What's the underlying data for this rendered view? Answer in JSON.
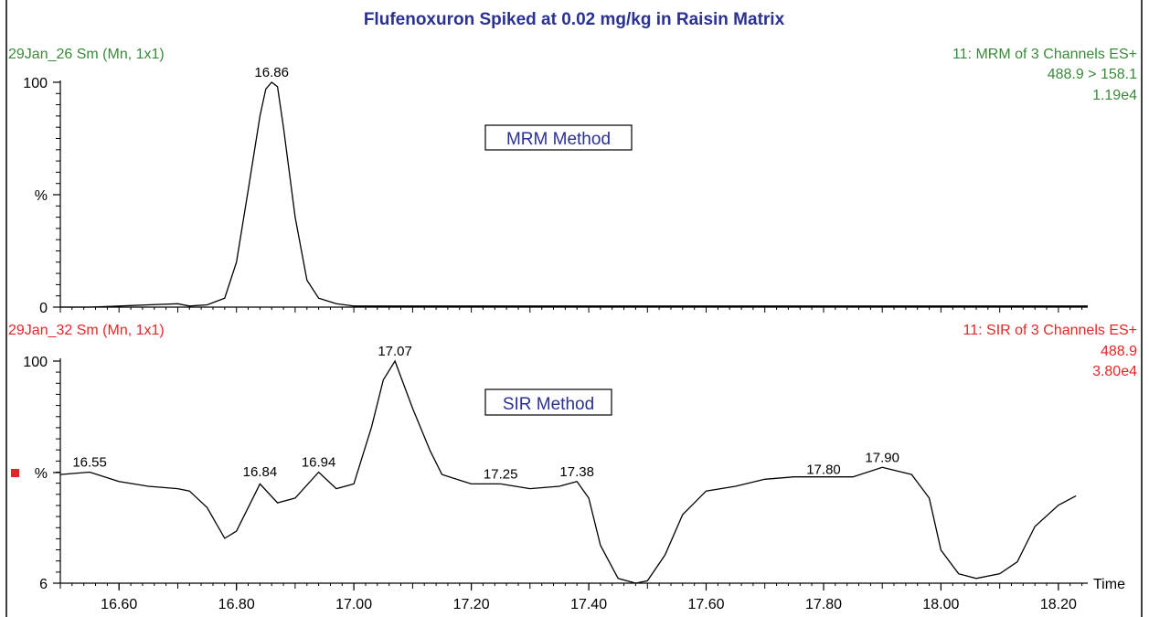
{
  "title": "Flufenoxuron Spiked at 0.02 mg/kg in Raisin Matrix",
  "colors": {
    "title": "#2a3190",
    "top_header": "#3a8a3a",
    "bottom_header": "#e02828",
    "trace": "#000000",
    "marker": "#e02828"
  },
  "chart_data": [
    {
      "type": "line",
      "method_label": "MRM Method",
      "header_left": "29Jan_26 Sm (Mn, 1x1)",
      "header_right": [
        "11: MRM of 3 Channels ES+",
        "488.9 > 158.1",
        "1.19e4"
      ],
      "y_tick_labels": [
        "100",
        "%",
        "0"
      ],
      "xlim": [
        16.5,
        18.25
      ],
      "ylim": [
        0,
        100
      ],
      "peak_labels": [
        {
          "x": 16.86,
          "y": 100,
          "text": "16.86"
        }
      ],
      "x": [
        16.5,
        16.55,
        16.6,
        16.65,
        16.7,
        16.72,
        16.75,
        16.78,
        16.8,
        16.82,
        16.84,
        16.85,
        16.86,
        16.87,
        16.88,
        16.9,
        16.92,
        16.94,
        16.97,
        17.0,
        17.2,
        17.4,
        17.6,
        17.8,
        18.0,
        18.1,
        18.2,
        18.25
      ],
      "y": [
        0,
        0,
        0.5,
        1,
        1.5,
        0.5,
        1,
        4,
        20,
        52,
        85,
        97,
        100,
        98,
        80,
        40,
        12,
        4,
        1.5,
        0.5,
        0.5,
        0.5,
        0.5,
        0.5,
        0.5,
        0.5,
        0.5,
        0.5
      ]
    },
    {
      "type": "line",
      "method_label": "SIR Method",
      "header_left": "29Jan_32 Sm (Mn, 1x1)",
      "header_right": [
        "11: SIR of 3 Channels ES+",
        "488.9",
        "3.80e4"
      ],
      "y_tick_labels": [
        "100",
        "%",
        "6"
      ],
      "xlim": [
        16.5,
        18.25
      ],
      "ylim": [
        6,
        100
      ],
      "x_ticks": [
        "16.60",
        "16.80",
        "17.00",
        "17.20",
        "17.40",
        "17.60",
        "17.80",
        "18.00",
        "18.20"
      ],
      "x_tick_values": [
        16.6,
        16.8,
        17.0,
        17.2,
        17.4,
        17.6,
        17.8,
        18.0,
        18.2
      ],
      "x_axis_label": "Time",
      "peak_labels": [
        {
          "x": 16.55,
          "y": 53,
          "text": "16.55"
        },
        {
          "x": 16.84,
          "y": 49,
          "text": "16.84"
        },
        {
          "x": 16.94,
          "y": 53,
          "text": "16.94"
        },
        {
          "x": 17.07,
          "y": 100,
          "text": "17.07"
        },
        {
          "x": 17.25,
          "y": 48,
          "text": "17.25"
        },
        {
          "x": 17.38,
          "y": 49,
          "text": "17.38"
        },
        {
          "x": 17.8,
          "y": 50,
          "text": "17.80"
        },
        {
          "x": 17.9,
          "y": 55,
          "text": "17.90"
        }
      ],
      "x": [
        16.5,
        16.55,
        16.6,
        16.65,
        16.7,
        16.72,
        16.75,
        16.78,
        16.8,
        16.84,
        16.87,
        16.9,
        16.94,
        16.97,
        17.0,
        17.03,
        17.05,
        17.07,
        17.1,
        17.13,
        17.15,
        17.2,
        17.25,
        17.3,
        17.35,
        17.38,
        17.4,
        17.42,
        17.45,
        17.48,
        17.5,
        17.53,
        17.56,
        17.6,
        17.65,
        17.7,
        17.75,
        17.8,
        17.85,
        17.9,
        17.95,
        17.98,
        18.0,
        18.03,
        18.06,
        18.1,
        18.13,
        18.16,
        18.2,
        18.23
      ],
      "y": [
        52,
        53,
        49,
        47,
        46,
        45,
        38,
        25,
        28,
        48,
        40,
        42,
        53,
        46,
        48,
        72,
        92,
        100,
        80,
        62,
        52,
        48,
        48,
        46,
        47,
        49,
        42,
        22,
        8,
        6,
        7,
        18,
        35,
        45,
        47,
        50,
        51,
        51,
        51,
        55,
        52,
        42,
        20,
        10,
        8,
        10,
        15,
        30,
        39,
        43
      ]
    }
  ]
}
